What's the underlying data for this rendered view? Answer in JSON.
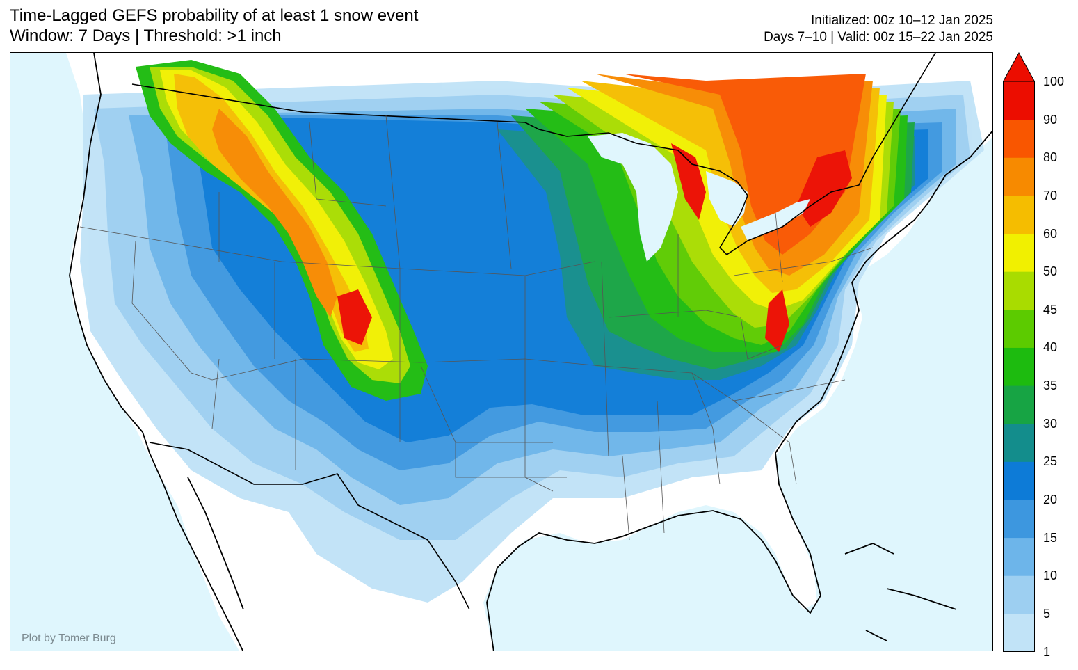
{
  "header": {
    "title_line1": "Time-Lagged GEFS probability of at least 1 snow event",
    "title_line2": "Window: 7 Days | Threshold: >1 inch",
    "init_line": "Initialized: 00z 10–12 Jan 2025",
    "valid_line": "Days 7–10 | Valid: 00z 15–22 Jan 2025"
  },
  "map": {
    "credit": "Plot by Tomer Burg",
    "ocean_color": "#dff6fd",
    "land_color": "#ffffff"
  },
  "colorbar": {
    "levels": [
      1,
      5,
      10,
      15,
      20,
      25,
      30,
      35,
      40,
      45,
      50,
      60,
      70,
      80,
      90,
      100
    ],
    "colors": [
      "#c1e3f7",
      "#9dcff1",
      "#6db5ea",
      "#3d97df",
      "#0d7bd7",
      "#138d8c",
      "#17a444",
      "#1dbb0f",
      "#5ccb00",
      "#a9dc00",
      "#f1f000",
      "#f5bd00",
      "#f78a00",
      "#f95600",
      "#ec0d00"
    ],
    "extend_max": true
  }
}
